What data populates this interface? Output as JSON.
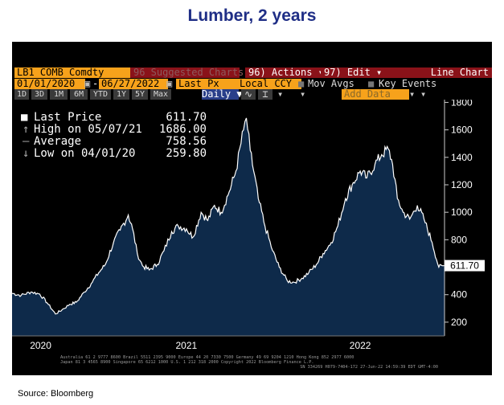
{
  "title": "Lumber, 2 years",
  "source": "Source: Bloomberg",
  "toolbar": {
    "ticker": "LB1 COMB Comdty",
    "suggested": "96 Suggested Charts",
    "actions": "96) Actions ▾",
    "edit": "97) Edit ▾",
    "chart_type": "Line Chart",
    "start_date": "01/01/2020",
    "end_date": "06/27/2022",
    "field": "Last Px",
    "currency": "Local CCY",
    "mov_avgs": "Mov Avgs",
    "key_events": "Key Events",
    "periods": [
      "1D",
      "3D",
      "1M",
      "6M",
      "YTD",
      "1Y",
      "5Y",
      "Max"
    ],
    "frequency": "Daily ▼",
    "add_data": "Add Data"
  },
  "legend": [
    {
      "label": "Last Price",
      "value": "611.70"
    },
    {
      "label": "High on 05/07/21",
      "value": "1686.00"
    },
    {
      "label": "Average",
      "value": "758.56"
    },
    {
      "label": "Low on 04/01/20",
      "value": "259.80"
    }
  ],
  "last_value_label": "611.70",
  "footer": {
    "line1": "Australia 61 2 9777 8600 Brazil 5511 2395 9000 Europe 44 20 7330 7500 Germany 49 69 9204 1210 Hong Kong 852 2977 6000",
    "line2": "Japan 81 3 4565 8900 Singapore 65 6212 1000 U.S. 1 212 318 2000 Copyright 2022 Bloomberg Finance L.P.",
    "line3": "SN 334269 H079-7404-172 27-Jun-22 14:59:39 EDT GMT-4:00"
  },
  "colors": {
    "fill": "#0e2a4a",
    "line": "#ffffff",
    "accent": "#f7a21b"
  },
  "chart_data": {
    "type": "area",
    "title": "Lumber, 2 years",
    "series_name": "LB1 COMB Comdty",
    "xlim": [
      "2020-01-01",
      "2022-06-27"
    ],
    "ylim": [
      100,
      1820
    ],
    "yticks": [
      200,
      400,
      600,
      800,
      1000,
      1200,
      1400,
      1600,
      1800
    ],
    "xtick_labels": [
      {
        "date": "2020-03-01",
        "label": "2020"
      },
      {
        "date": "2021-01-01",
        "label": "2021"
      },
      {
        "date": "2022-01-01",
        "label": "2022"
      }
    ],
    "grid": false,
    "x": [
      "2020-01-01",
      "2020-01-20",
      "2020-02-10",
      "2020-02-28",
      "2020-03-15",
      "2020-04-01",
      "2020-04-15",
      "2020-05-01",
      "2020-05-15",
      "2020-06-01",
      "2020-06-15",
      "2020-07-01",
      "2020-07-15",
      "2020-08-01",
      "2020-08-15",
      "2020-09-01",
      "2020-09-10",
      "2020-09-20",
      "2020-10-01",
      "2020-10-15",
      "2020-11-01",
      "2020-11-15",
      "2020-12-01",
      "2020-12-15",
      "2021-01-01",
      "2021-01-15",
      "2021-02-01",
      "2021-02-15",
      "2021-03-01",
      "2021-03-15",
      "2021-04-01",
      "2021-04-15",
      "2021-05-01",
      "2021-05-07",
      "2021-05-15",
      "2021-06-01",
      "2021-06-15",
      "2021-07-01",
      "2021-07-15",
      "2021-08-01",
      "2021-08-15",
      "2021-09-01",
      "2021-09-15",
      "2021-10-01",
      "2021-10-15",
      "2021-11-01",
      "2021-11-15",
      "2021-12-01",
      "2021-12-15",
      "2022-01-01",
      "2022-01-15",
      "2022-02-01",
      "2022-02-15",
      "2022-03-01",
      "2022-03-10",
      "2022-03-20",
      "2022-04-01",
      "2022-04-15",
      "2022-05-01",
      "2022-05-15",
      "2022-06-01",
      "2022-06-15",
      "2022-06-27"
    ],
    "values": [
      410,
      395,
      420,
      405,
      340,
      259.8,
      290,
      330,
      345,
      420,
      480,
      560,
      620,
      780,
      870,
      980,
      880,
      700,
      610,
      580,
      620,
      720,
      860,
      900,
      880,
      820,
      1000,
      940,
      1050,
      1000,
      1150,
      1300,
      1600,
      1686,
      1450,
      1100,
      900,
      720,
      600,
      500,
      490,
      520,
      560,
      620,
      700,
      780,
      900,
      1100,
      1200,
      1300,
      1250,
      1350,
      1420,
      1460,
      1350,
      1100,
      1000,
      950,
      1050,
      950,
      780,
      600,
      611.7
    ]
  }
}
